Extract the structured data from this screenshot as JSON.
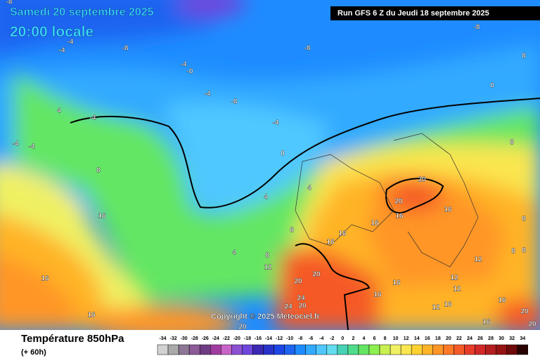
{
  "header": {
    "date": "Samedi 20 septembre 2025",
    "time": "20:00 locale",
    "run": "Run GFS 6 Z du Jeudi 18 septembre 2025"
  },
  "copyright": "Copyright © 2025 Meteociel.fr",
  "footer": {
    "title": "Température 850hPa",
    "subtitle": "(+ 60h)"
  },
  "legend": {
    "values": [
      -34,
      -32,
      -30,
      -28,
      -26,
      -24,
      -22,
      -20,
      -18,
      -16,
      -14,
      -12,
      -10,
      -8,
      -6,
      -4,
      -2,
      0,
      2,
      4,
      6,
      8,
      10,
      12,
      14,
      16,
      18,
      20,
      22,
      24,
      26,
      28,
      30,
      32,
      34
    ],
    "colors": [
      "#d2d2d2",
      "#aaaaaa",
      "#8c7896",
      "#8c5a96",
      "#6e3c82",
      "#a03ca0",
      "#c864c8",
      "#8c50d2",
      "#6e46dc",
      "#3c28b4",
      "#2832c8",
      "#1e46e6",
      "#1e64f0",
      "#1e8cff",
      "#32aaff",
      "#50c8ff",
      "#64dcf0",
      "#46d2b4",
      "#50dc8c",
      "#64e664",
      "#8cf050",
      "#c8f050",
      "#f0f064",
      "#fae650",
      "#ffd232",
      "#ffb428",
      "#ff9628",
      "#ff7828",
      "#f55a28",
      "#e63c28",
      "#d22828",
      "#b41e1e",
      "#961414",
      "#6e0a0a",
      "#280000"
    ]
  },
  "contour_labels": [
    "-8",
    "-4",
    "-4",
    "-8",
    "-8",
    "-8",
    "-4",
    "-0",
    "-4",
    "-8",
    "-4",
    "4",
    "-4",
    "-4",
    "-4",
    "0",
    "4",
    "8",
    "16",
    "4",
    "8",
    "4",
    "8",
    "12",
    "16",
    "16",
    "16",
    "20",
    "20",
    "16",
    "16",
    "16",
    "16",
    "20",
    "20",
    "24",
    "20",
    "24",
    "16",
    "16",
    "12",
    "12",
    "12",
    "16",
    "16",
    "12",
    "8",
    "8",
    "8",
    "0",
    "8",
    "16",
    "20",
    "20",
    "20",
    "8"
  ]
}
